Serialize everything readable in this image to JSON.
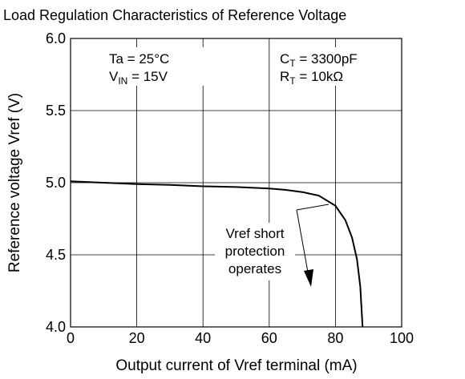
{
  "chart_data": {
    "type": "line",
    "title": "Load Regulation Characteristics of Reference Voltage",
    "x_label": "Output current of Vref terminal (mA)",
    "y_label": "Reference voltage  Vref (V)",
    "x": [
      0,
      10,
      20,
      30,
      40,
      50,
      60,
      65,
      70,
      75,
      80,
      83,
      85,
      86.5,
      87.5,
      88.2
    ],
    "series": [
      {
        "color": "#000000",
        "values": [
          5.01,
          5.0,
          4.99,
          4.985,
          4.975,
          4.97,
          4.96,
          4.95,
          4.935,
          4.91,
          4.84,
          4.74,
          4.62,
          4.47,
          4.28,
          4.0
        ]
      }
    ],
    "xlim": [
      0,
      100
    ],
    "ylim": [
      4.0,
      6.0
    ],
    "xticks": [
      0,
      20,
      40,
      60,
      80,
      100
    ],
    "yticks": [
      {
        "value": 4,
        "label": "4.0"
      },
      4.5,
      {
        "value": 5,
        "label": "5.0"
      },
      5.5,
      {
        "value": 6,
        "label": "6.0"
      }
    ],
    "grid": true,
    "conditions_left": [
      {
        "main": "Ta = 25°C"
      },
      {
        "main": "V",
        "sub": "IN",
        "rest": " = 15V"
      }
    ],
    "conditions_right": [
      {
        "main": "C",
        "sub": "T",
        "rest": " = 3300pF"
      },
      {
        "main": "R",
        "sub": "T",
        "rest": " = 10kΩ"
      }
    ],
    "annotation": [
      "Vref short",
      "protection",
      "operates"
    ]
  }
}
